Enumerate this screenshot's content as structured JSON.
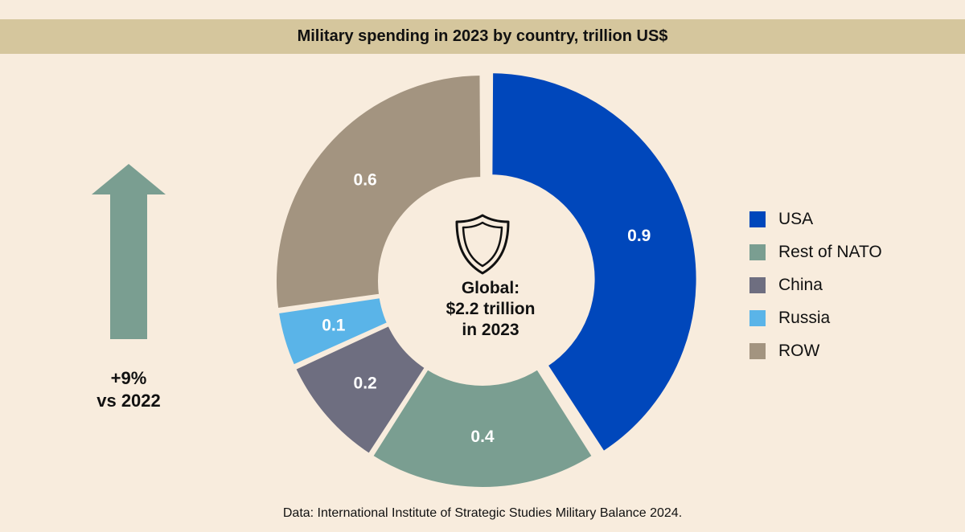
{
  "title": "Military spending in 2023 by country, trillion US$",
  "change": {
    "line1": "+9%",
    "line2": "vs 2022",
    "color": "#7a9e91"
  },
  "center": {
    "text": "Global:\n$2.2 trillion\nin 2023",
    "icon": "shield-icon"
  },
  "source": "Data: International Institute of Strategic Studies Military Balance 2024.",
  "chart_data": {
    "type": "pie",
    "title": "Military spending in 2023 by country, trillion US$",
    "total_label": "Global: $2.2 trillion in 2023",
    "legend_position": "right",
    "slices": [
      {
        "name": "USA",
        "value": 0.9,
        "label": "0.9",
        "color": "#0047bb",
        "exploded": true
      },
      {
        "name": "Rest of NATO",
        "value": 0.4,
        "label": "0.4",
        "color": "#7a9e91",
        "exploded": false
      },
      {
        "name": "China",
        "value": 0.2,
        "label": "0.2",
        "color": "#6e6e80",
        "exploded": false
      },
      {
        "name": "Russia",
        "value": 0.1,
        "label": "0.1",
        "color": "#5ab4e8",
        "exploded": false
      },
      {
        "name": "ROW",
        "value": 0.6,
        "label": "0.6",
        "color": "#a39480",
        "exploded": false
      }
    ]
  }
}
